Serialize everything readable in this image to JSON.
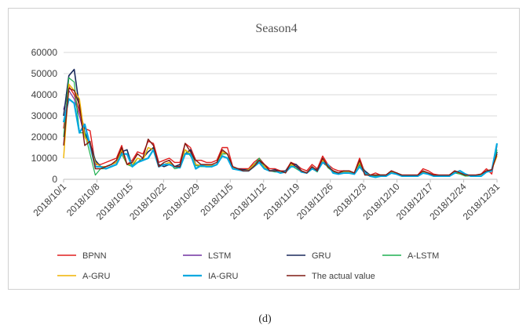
{
  "caption": "(d)",
  "chart_data": {
    "type": "line",
    "title": "Season4",
    "xlabel": "",
    "ylabel": "",
    "ylim": [
      0,
      60000
    ],
    "yticks": [
      0,
      10000,
      20000,
      30000,
      40000,
      50000,
      60000
    ],
    "grid": "horizontal",
    "legend_position": "bottom",
    "x_ticks": [
      "2018/10/1",
      "2018/10/8",
      "2018/10/15",
      "2018/10/22",
      "2018/10/29",
      "2018/11/5",
      "2018/11/12",
      "2018/11/19",
      "2018/11/26",
      "2018/12/3",
      "2018/12/10",
      "2018/12/17",
      "2018/12/24",
      "2018/12/31"
    ],
    "x_start": "2018-10-01",
    "x_end": "2018-12-31",
    "series": [
      {
        "name": "The actual value",
        "color": "#7f1a14",
        "width": 1.4,
        "values": [
          16000,
          43000,
          42000,
          35000,
          16000,
          18000,
          5000,
          5000,
          6000,
          7000,
          9000,
          15000,
          7000,
          8000,
          12000,
          10000,
          19000,
          16000,
          6000,
          8000,
          9000,
          6000,
          6000,
          17000,
          13000,
          9000,
          7000,
          7000,
          7000,
          8000,
          14000,
          12000,
          6000,
          5000,
          4000,
          4000,
          6000,
          9000,
          7000,
          4000,
          4000,
          4000,
          3000,
          8000,
          6000,
          4000,
          3000,
          6000,
          4000,
          10000,
          6000,
          4000,
          3000,
          4000,
          4000,
          3000,
          9000,
          2000,
          2000,
          2000,
          2000,
          2000,
          4000,
          3000,
          2000,
          2000,
          2000,
          2000,
          4000,
          3000,
          2000,
          2000,
          2000,
          2000,
          4000,
          3000,
          2000,
          2000,
          2000,
          2500,
          4000,
          4500,
          12000
        ]
      },
      {
        "name": "BPNN",
        "color": "#e01e1e",
        "width": 1.4,
        "values": [
          24000,
          44000,
          40000,
          32000,
          24000,
          23000,
          7000,
          7000,
          8000,
          9000,
          10000,
          16000,
          7000,
          9000,
          13000,
          12000,
          18000,
          17000,
          8000,
          9000,
          10000,
          8000,
          8000,
          17000,
          15000,
          9000,
          9000,
          8000,
          8000,
          9000,
          15000,
          15000,
          6000,
          5000,
          5000,
          5000,
          8000,
          10000,
          7000,
          5000,
          5000,
          4000,
          4000,
          8000,
          7000,
          5000,
          4000,
          7000,
          5000,
          11000,
          7000,
          5000,
          4000,
          4000,
          4000,
          3000,
          10000,
          3000,
          2000,
          3000,
          2000,
          2000,
          4000,
          3000,
          2000,
          2000,
          2000,
          2000,
          5000,
          4000,
          2500,
          2000,
          2000,
          2000,
          4000,
          3000,
          2000,
          2000,
          2000,
          2500,
          5000,
          2500,
          16000
        ]
      },
      {
        "name": "LSTM",
        "color": "#7030a0",
        "width": 1.2,
        "values": [
          33000,
          42000,
          38000,
          30000,
          20000,
          17000,
          8000,
          6000,
          6000,
          7000,
          8000,
          14000,
          7000,
          7000,
          10000,
          9000,
          15000,
          14000,
          6000,
          7000,
          8000,
          6000,
          6000,
          14000,
          12000,
          7000,
          6500,
          6500,
          6500,
          7000,
          13000,
          12000,
          5500,
          4500,
          4000,
          4500,
          7000,
          8000,
          6000,
          4000,
          4000,
          3500,
          3500,
          7000,
          6000,
          4000,
          3000,
          6000,
          4000,
          9000,
          6000,
          4000,
          3000,
          3500,
          3500,
          3000,
          8000,
          3000,
          2000,
          2000,
          2000,
          2000,
          3500,
          3000,
          2000,
          1500,
          1500,
          2000,
          3500,
          3000,
          2000,
          1500,
          1500,
          2000,
          3500,
          3000,
          2000,
          1500,
          1500,
          2000,
          4000,
          4500,
          13000
        ]
      },
      {
        "name": "GRU",
        "color": "#1a2a5c",
        "width": 1.6,
        "values": [
          30000,
          49000,
          52000,
          34000,
          22000,
          17000,
          9000,
          6000,
          6000,
          7000,
          8000,
          13000,
          14000,
          6000,
          8000,
          10000,
          13000,
          15000,
          7000,
          6000,
          7000,
          6000,
          7000,
          12000,
          14000,
          7000,
          6500,
          6500,
          6000,
          7000,
          13000,
          12000,
          5500,
          5000,
          4500,
          4500,
          7000,
          9000,
          6000,
          4000,
          4500,
          3500,
          4000,
          7000,
          7000,
          4000,
          3000,
          5500,
          4500,
          8000,
          6000,
          4000,
          3000,
          4000,
          3500,
          3000,
          7000,
          4000,
          2000,
          2000,
          2000,
          2000,
          3500,
          3000,
          2000,
          1500,
          1500,
          2000,
          3500,
          3000,
          2000,
          1500,
          1500,
          2000,
          3500,
          3000,
          2000,
          1500,
          1500,
          2000,
          4000,
          4500,
          13000
        ]
      },
      {
        "name": "A-LSTM",
        "color": "#1fb050",
        "width": 1.2,
        "values": [
          20000,
          48000,
          46000,
          22000,
          22000,
          12000,
          2000,
          5000,
          5000,
          6000,
          7000,
          12000,
          7000,
          6000,
          10000,
          9000,
          15000,
          14000,
          6000,
          7000,
          8000,
          5000,
          5500,
          14000,
          11000,
          6500,
          6000,
          6000,
          6000,
          7000,
          12000,
          12000,
          5000,
          4500,
          4000,
          4000,
          6500,
          10000,
          6000,
          4000,
          3500,
          3500,
          3500,
          6500,
          5000,
          3500,
          3000,
          5000,
          3500,
          9000,
          5500,
          3500,
          2500,
          3000,
          3000,
          2500,
          7000,
          2500,
          1500,
          1500,
          2000,
          1500,
          3000,
          2500,
          1500,
          1500,
          1500,
          1500,
          3000,
          2500,
          1500,
          1500,
          1500,
          1500,
          3000,
          2500,
          1500,
          1500,
          1500,
          1500,
          3500,
          4000,
          14000
        ]
      },
      {
        "name": "A-GRU",
        "color": "#f0b400",
        "width": 1.4,
        "values": [
          10000,
          45000,
          42000,
          38000,
          20000,
          16000,
          8000,
          6000,
          6000,
          7000,
          8000,
          14000,
          7000,
          7000,
          10000,
          9000,
          15000,
          14000,
          6000,
          7000,
          8000,
          6000,
          6000,
          14000,
          12000,
          7000,
          6500,
          6500,
          6500,
          7000,
          13000,
          12000,
          5500,
          4500,
          4000,
          4500,
          7000,
          8000,
          6000,
          4000,
          4000,
          3500,
          3500,
          7000,
          6000,
          4000,
          3000,
          6000,
          4000,
          9000,
          6000,
          4000,
          3000,
          3500,
          3500,
          3000,
          8000,
          3000,
          2000,
          2000,
          2000,
          2000,
          3500,
          3000,
          2000,
          1500,
          1500,
          2000,
          3500,
          3000,
          2000,
          1500,
          1500,
          2000,
          3500,
          3000,
          2000,
          1500,
          1500,
          2000,
          4000,
          4500,
          11000
        ]
      },
      {
        "name": "IA-GRU",
        "color": "#00a8e0",
        "width": 2.2,
        "values": [
          27000,
          38000,
          36000,
          22000,
          26000,
          16000,
          6000,
          6000,
          5000,
          6000,
          7000,
          12000,
          12000,
          6000,
          8000,
          9000,
          10000,
          14000,
          6000,
          7000,
          7000,
          6000,
          5500,
          12000,
          12000,
          5000,
          6500,
          6000,
          6000,
          7000,
          11000,
          10000,
          5000,
          4500,
          4000,
          4000,
          6000,
          8000,
          5000,
          4000,
          4000,
          3000,
          3500,
          6000,
          6000,
          3500,
          3000,
          5000,
          4000,
          8000,
          7000,
          3000,
          2500,
          3000,
          3000,
          2500,
          6000,
          3000,
          1500,
          1000,
          1500,
          1500,
          3000,
          2500,
          1500,
          1500,
          1500,
          1500,
          3000,
          2500,
          1500,
          1500,
          1500,
          1500,
          3000,
          4000,
          2500,
          1500,
          1500,
          1500,
          3500,
          4000,
          17000
        ]
      }
    ],
    "legend": [
      [
        "BPNN",
        "LSTM",
        "GRU",
        "A-LSTM"
      ],
      [
        "A-GRU",
        "IA-GRU",
        "The actual value"
      ]
    ]
  }
}
